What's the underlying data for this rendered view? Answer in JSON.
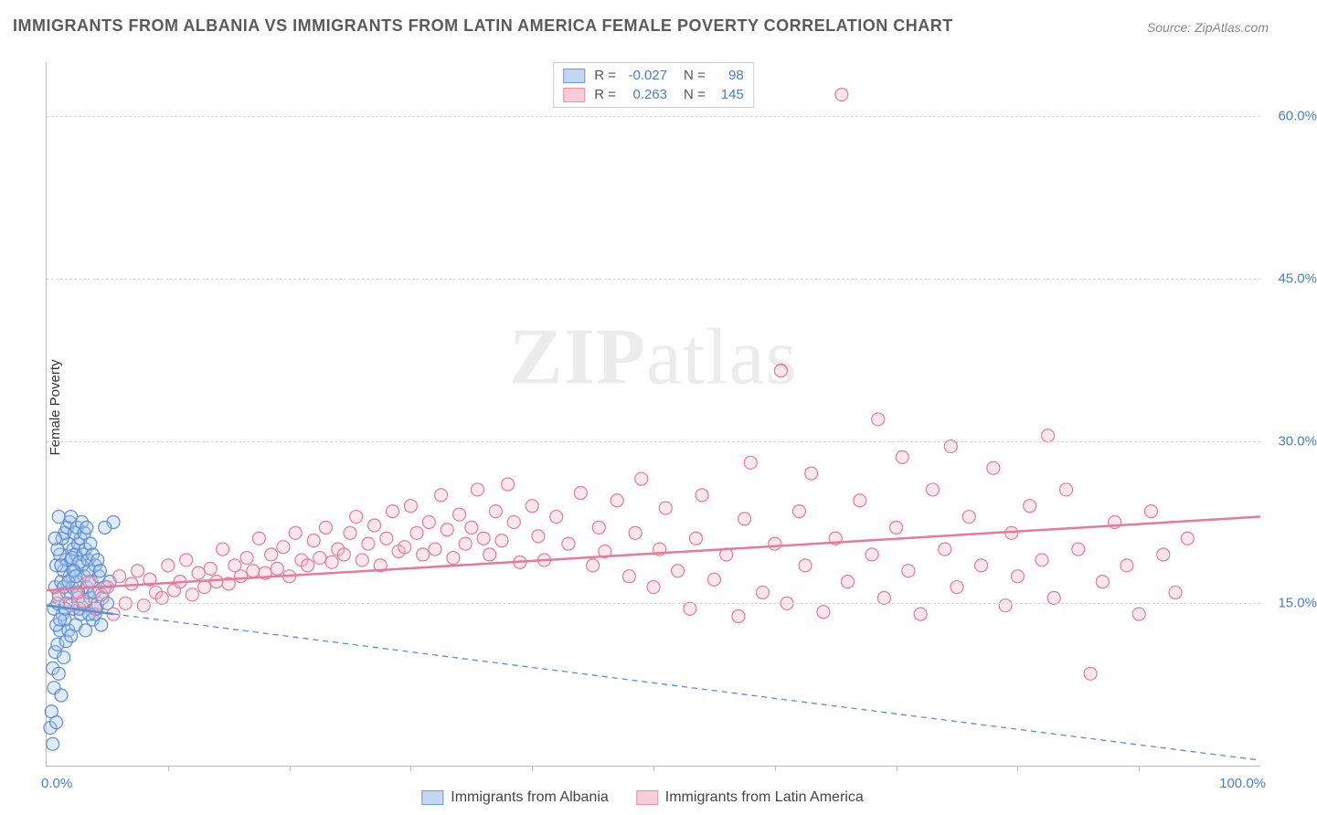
{
  "title": "IMMIGRANTS FROM ALBANIA VS IMMIGRANTS FROM LATIN AMERICA FEMALE POVERTY CORRELATION CHART",
  "source_prefix": "Source: ",
  "source_name": "ZipAtlas.com",
  "y_axis_label": "Female Poverty",
  "watermark_zip": "ZIP",
  "watermark_atlas": "atlas",
  "chart": {
    "type": "scatter-correlation",
    "background_color": "#ffffff",
    "grid_color": "#d8d8d8",
    "axis_color": "#bbbbbb",
    "tick_label_color": "#4a7ec9",
    "xlim": [
      0,
      100
    ],
    "ylim": [
      0,
      65
    ],
    "y_ticks": [
      {
        "value": 15.0,
        "label": "15.0%"
      },
      {
        "value": 30.0,
        "label": "30.0%"
      },
      {
        "value": 45.0,
        "label": "45.0%"
      },
      {
        "value": 60.0,
        "label": "60.0%"
      }
    ],
    "x_tick_positions": [
      10,
      20,
      30,
      40,
      50,
      60,
      70,
      80,
      90
    ],
    "x_label_min": "0.0%",
    "x_label_max": "100.0%",
    "marker_radius": 7,
    "marker_stroke_width": 1.2,
    "marker_fill_opacity": 0.35,
    "trend_line_width_solid": 2.5,
    "trend_line_width_dashed": 1.3
  },
  "series": [
    {
      "key": "albania",
      "label": "Immigrants from Albania",
      "color_stroke": "#5b8cd4",
      "color_fill": "#a9c5eb",
      "swatch_fill": "#c4d7f2",
      "swatch_border": "#6d9adb",
      "trend": {
        "x1": 0,
        "y1": 14.8,
        "x2": 100,
        "y2": 0.5,
        "solid_until_x": 5.5,
        "dash": "6,5"
      },
      "stats": {
        "R_label": "R =",
        "R": "-0.027",
        "N_label": "N =",
        "N": "98"
      },
      "points": [
        [
          0.3,
          3.5
        ],
        [
          0.4,
          5.0
        ],
        [
          0.5,
          2.0
        ],
        [
          0.6,
          7.2
        ],
        [
          0.8,
          4.0
        ],
        [
          0.5,
          9.0
        ],
        [
          0.7,
          10.5
        ],
        [
          1.0,
          8.5
        ],
        [
          0.9,
          11.2
        ],
        [
          1.2,
          6.5
        ],
        [
          1.1,
          12.5
        ],
        [
          1.4,
          10.0
        ],
        [
          0.8,
          13.0
        ],
        [
          1.6,
          11.5
        ],
        [
          1.3,
          14.0
        ],
        [
          1.8,
          12.5
        ],
        [
          0.6,
          14.5
        ],
        [
          0.9,
          15.0
        ],
        [
          1.5,
          13.5
        ],
        [
          1.0,
          15.8
        ],
        [
          2.0,
          12.0
        ],
        [
          1.7,
          16.0
        ],
        [
          2.2,
          14.5
        ],
        [
          0.7,
          16.5
        ],
        [
          1.2,
          17.0
        ],
        [
          2.4,
          13.0
        ],
        [
          1.9,
          17.5
        ],
        [
          2.6,
          15.5
        ],
        [
          1.4,
          18.0
        ],
        [
          2.1,
          16.5
        ],
        [
          2.8,
          14.0
        ],
        [
          0.8,
          18.5
        ],
        [
          3.0,
          15.0
        ],
        [
          1.6,
          19.0
        ],
        [
          2.3,
          18.0
        ],
        [
          3.2,
          12.5
        ],
        [
          1.1,
          19.5
        ],
        [
          2.5,
          17.0
        ],
        [
          3.4,
          16.0
        ],
        [
          0.9,
          20.0
        ],
        [
          2.7,
          14.5
        ],
        [
          1.8,
          20.5
        ],
        [
          3.6,
          15.5
        ],
        [
          2.0,
          19.0
        ],
        [
          2.9,
          18.5
        ],
        [
          1.3,
          21.0
        ],
        [
          3.8,
          13.5
        ],
        [
          2.2,
          20.0
        ],
        [
          3.1,
          17.5
        ],
        [
          1.5,
          21.5
        ],
        [
          2.4,
          19.5
        ],
        [
          4.0,
          14.0
        ],
        [
          3.3,
          16.5
        ],
        [
          0.7,
          21.0
        ],
        [
          2.6,
          20.5
        ],
        [
          1.7,
          22.0
        ],
        [
          3.5,
          18.0
        ],
        [
          2.8,
          21.0
        ],
        [
          4.2,
          15.0
        ],
        [
          1.9,
          22.5
        ],
        [
          3.0,
          19.5
        ],
        [
          2.1,
          19.2
        ],
        [
          3.7,
          17.0
        ],
        [
          1.0,
          23.0
        ],
        [
          2.3,
          21.5
        ],
        [
          3.9,
          16.0
        ],
        [
          4.5,
          13.0
        ],
        [
          2.5,
          22.0
        ],
        [
          3.2,
          20.0
        ],
        [
          1.2,
          18.5
        ],
        [
          4.1,
          14.5
        ],
        [
          2.7,
          18.8
        ],
        [
          3.4,
          19.0
        ],
        [
          1.4,
          16.5
        ],
        [
          4.3,
          17.5
        ],
        [
          2.9,
          22.5
        ],
        [
          3.6,
          20.5
        ],
        [
          1.6,
          15.0
        ],
        [
          2.0,
          23.0
        ],
        [
          4.6,
          15.5
        ],
        [
          3.8,
          19.5
        ],
        [
          1.8,
          17.0
        ],
        [
          3.1,
          21.5
        ],
        [
          4.8,
          16.5
        ],
        [
          2.2,
          18.0
        ],
        [
          4.0,
          18.5
        ],
        [
          3.3,
          22.0
        ],
        [
          1.5,
          14.5
        ],
        [
          5.0,
          15.0
        ],
        [
          2.4,
          17.5
        ],
        [
          4.2,
          19.0
        ],
        [
          3.5,
          14.0
        ],
        [
          5.2,
          17.0
        ],
        [
          2.6,
          16.0
        ],
        [
          4.4,
          18.0
        ],
        [
          1.1,
          13.5
        ],
        [
          5.5,
          22.5
        ],
        [
          4.8,
          22.0
        ]
      ]
    },
    {
      "key": "latin_america",
      "label": "Immigrants from Latin America",
      "color_stroke": "#e67a9a",
      "color_fill": "#f5b9cb",
      "swatch_fill": "#f7cdd9",
      "swatch_border": "#eb8fa9",
      "trend": {
        "x1": 0,
        "y1": 16.2,
        "x2": 100,
        "y2": 23.0,
        "solid_until_x": 100,
        "dash": ""
      },
      "stats": {
        "R_label": "R =",
        "R": "0.263",
        "N_label": "N =",
        "N": "145"
      },
      "points": [
        [
          1.0,
          15.5
        ],
        [
          2.0,
          14.8
        ],
        [
          2.5,
          16.0
        ],
        [
          3.0,
          15.2
        ],
        [
          3.5,
          17.0
        ],
        [
          4.0,
          14.5
        ],
        [
          4.5,
          15.8
        ],
        [
          5.0,
          16.5
        ],
        [
          5.5,
          14.0
        ],
        [
          6.0,
          17.5
        ],
        [
          6.5,
          15.0
        ],
        [
          7.0,
          16.8
        ],
        [
          7.5,
          18.0
        ],
        [
          8.0,
          14.8
        ],
        [
          8.5,
          17.2
        ],
        [
          9.0,
          16.0
        ],
        [
          9.5,
          15.5
        ],
        [
          10.0,
          18.5
        ],
        [
          10.5,
          16.2
        ],
        [
          11.0,
          17.0
        ],
        [
          11.5,
          19.0
        ],
        [
          12.0,
          15.8
        ],
        [
          12.5,
          17.8
        ],
        [
          13.0,
          16.5
        ],
        [
          13.5,
          18.2
        ],
        [
          14.0,
          17.0
        ],
        [
          14.5,
          20.0
        ],
        [
          15.0,
          16.8
        ],
        [
          15.5,
          18.5
        ],
        [
          16.0,
          17.5
        ],
        [
          16.5,
          19.2
        ],
        [
          17.0,
          18.0
        ],
        [
          17.5,
          21.0
        ],
        [
          18.0,
          17.8
        ],
        [
          18.5,
          19.5
        ],
        [
          19.0,
          18.2
        ],
        [
          19.5,
          20.2
        ],
        [
          20.0,
          17.5
        ],
        [
          20.5,
          21.5
        ],
        [
          21.0,
          19.0
        ],
        [
          21.5,
          18.5
        ],
        [
          22.0,
          20.8
        ],
        [
          22.5,
          19.2
        ],
        [
          23.0,
          22.0
        ],
        [
          23.5,
          18.8
        ],
        [
          24.0,
          20.0
        ],
        [
          24.5,
          19.5
        ],
        [
          25.0,
          21.5
        ],
        [
          25.5,
          23.0
        ],
        [
          26.0,
          19.0
        ],
        [
          26.5,
          20.5
        ],
        [
          27.0,
          22.2
        ],
        [
          27.5,
          18.5
        ],
        [
          28.0,
          21.0
        ],
        [
          28.5,
          23.5
        ],
        [
          29.0,
          19.8
        ],
        [
          29.5,
          20.2
        ],
        [
          30.0,
          24.0
        ],
        [
          30.5,
          21.5
        ],
        [
          31.0,
          19.5
        ],
        [
          31.5,
          22.5
        ],
        [
          32.0,
          20.0
        ],
        [
          32.5,
          25.0
        ],
        [
          33.0,
          21.8
        ],
        [
          33.5,
          19.2
        ],
        [
          34.0,
          23.2
        ],
        [
          34.5,
          20.5
        ],
        [
          35.0,
          22.0
        ],
        [
          35.5,
          25.5
        ],
        [
          36.0,
          21.0
        ],
        [
          36.5,
          19.5
        ],
        [
          37.0,
          23.5
        ],
        [
          37.5,
          20.8
        ],
        [
          38.0,
          26.0
        ],
        [
          38.5,
          22.5
        ],
        [
          39.0,
          18.8
        ],
        [
          40.0,
          24.0
        ],
        [
          40.5,
          21.2
        ],
        [
          41.0,
          19.0
        ],
        [
          42.0,
          23.0
        ],
        [
          43.0,
          20.5
        ],
        [
          44.0,
          25.2
        ],
        [
          45.0,
          18.5
        ],
        [
          45.5,
          22.0
        ],
        [
          46.0,
          19.8
        ],
        [
          47.0,
          24.5
        ],
        [
          48.0,
          17.5
        ],
        [
          48.5,
          21.5
        ],
        [
          49.0,
          26.5
        ],
        [
          50.0,
          16.5
        ],
        [
          50.5,
          20.0
        ],
        [
          51.0,
          23.8
        ],
        [
          52.0,
          18.0
        ],
        [
          53.0,
          14.5
        ],
        [
          53.5,
          21.0
        ],
        [
          54.0,
          25.0
        ],
        [
          55.0,
          17.2
        ],
        [
          56.0,
          19.5
        ],
        [
          57.0,
          13.8
        ],
        [
          57.5,
          22.8
        ],
        [
          58.0,
          28.0
        ],
        [
          59.0,
          16.0
        ],
        [
          60.0,
          20.5
        ],
        [
          60.5,
          36.5
        ],
        [
          61.0,
          15.0
        ],
        [
          62.0,
          23.5
        ],
        [
          62.5,
          18.5
        ],
        [
          63.0,
          27.0
        ],
        [
          64.0,
          14.2
        ],
        [
          65.0,
          21.0
        ],
        [
          65.5,
          62.0
        ],
        [
          66.0,
          17.0
        ],
        [
          67.0,
          24.5
        ],
        [
          68.0,
          19.5
        ],
        [
          68.5,
          32.0
        ],
        [
          69.0,
          15.5
        ],
        [
          70.0,
          22.0
        ],
        [
          70.5,
          28.5
        ],
        [
          71.0,
          18.0
        ],
        [
          72.0,
          14.0
        ],
        [
          73.0,
          25.5
        ],
        [
          74.0,
          20.0
        ],
        [
          74.5,
          29.5
        ],
        [
          75.0,
          16.5
        ],
        [
          76.0,
          23.0
        ],
        [
          77.0,
          18.5
        ],
        [
          78.0,
          27.5
        ],
        [
          79.0,
          14.8
        ],
        [
          79.5,
          21.5
        ],
        [
          80.0,
          17.5
        ],
        [
          81.0,
          24.0
        ],
        [
          82.0,
          19.0
        ],
        [
          83.0,
          15.5
        ],
        [
          84.0,
          25.5
        ],
        [
          85.0,
          20.0
        ],
        [
          86.0,
          8.5
        ],
        [
          87.0,
          17.0
        ],
        [
          88.0,
          22.5
        ],
        [
          89.0,
          18.5
        ],
        [
          90.0,
          14.0
        ],
        [
          91.0,
          23.5
        ],
        [
          92.0,
          19.5
        ],
        [
          93.0,
          16.0
        ],
        [
          94.0,
          21.0
        ],
        [
          82.5,
          30.5
        ]
      ]
    }
  ]
}
